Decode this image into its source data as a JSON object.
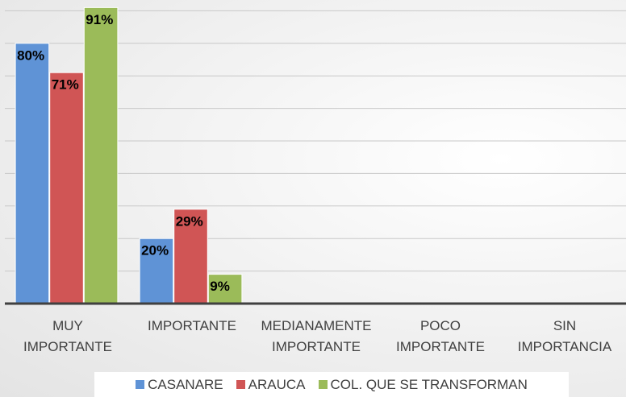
{
  "chart_data": {
    "type": "bar",
    "categories": [
      "MUY IMPORTANTE",
      "IMPORTANTE",
      "MEDIANAMENTE IMPORTANTE",
      "POCO IMPORTANTE",
      "SIN IMPORTANCIA"
    ],
    "series": [
      {
        "name": "CASANARE",
        "color": "#5f93d6",
        "values": [
          80,
          20,
          0,
          0,
          0
        ],
        "value_labels": [
          "80%",
          "20%",
          null,
          null,
          null
        ]
      },
      {
        "name": "ARAUCA",
        "color": "#d05555",
        "values": [
          71,
          29,
          0,
          0,
          0
        ],
        "value_labels": [
          "71%",
          "29%",
          null,
          null,
          null
        ]
      },
      {
        "name": "COL. QUE SE TRANSFORMAN",
        "color": "#9bbb59",
        "values": [
          91,
          9,
          0,
          0,
          0
        ],
        "value_labels": [
          "91%",
          "9%",
          null,
          null,
          null
        ]
      }
    ],
    "ylim": [
      0,
      100
    ],
    "yticks": [
      10,
      20,
      30,
      40,
      50,
      60,
      70,
      80,
      90
    ],
    "grid": true,
    "legend": "bottom"
  }
}
